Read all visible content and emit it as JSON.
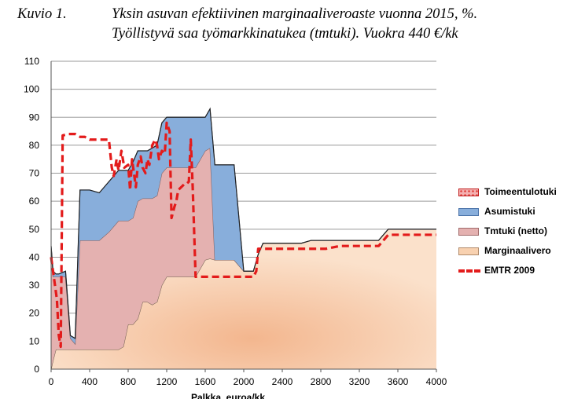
{
  "caption": {
    "number": "Kuvio 1.",
    "line1": "Yksin asuvan efektiivinen marginaaliveroaste vuonna 2015, %.",
    "line2": "Työllistyvä saa työmarkkinatukea (tmtuki). Vuokra 440 €/kk"
  },
  "colors": {
    "toimeentulotuki": "#e0403c",
    "asumistuki": "#88aedb",
    "tmtuki": "#e4b1b0",
    "marginaalivero": "#f8d1b0",
    "emtr": "#e31b1b",
    "grid": "#9a9a9a"
  },
  "chart_data": {
    "type": "area",
    "xlabel": "Palkka, euroa/kk",
    "ylabel": "",
    "xlim": [
      0,
      4000
    ],
    "ylim": [
      0,
      110
    ],
    "x_ticks": [
      0,
      400,
      800,
      1200,
      1600,
      2000,
      2400,
      2800,
      3200,
      3600,
      4000
    ],
    "y_ticks": [
      0,
      10,
      20,
      30,
      40,
      50,
      60,
      70,
      80,
      90,
      100,
      110
    ],
    "grid": true,
    "legend_position": "right",
    "series": [
      {
        "name": "Marginaalivero",
        "kind": "stacked-area",
        "x": [
          0,
          20,
          50,
          80,
          150,
          200,
          250,
          300,
          400,
          500,
          600,
          700,
          750,
          800,
          850,
          900,
          950,
          1000,
          1050,
          1100,
          1150,
          1200,
          1250,
          1300,
          1400,
          1500,
          1600,
          1650,
          1700,
          1800,
          1900,
          2000,
          2050,
          2100,
          2150,
          2200,
          2600,
          2700,
          3400,
          3500,
          4000
        ],
        "y": [
          0,
          3,
          7,
          7,
          7,
          7,
          7,
          7,
          7,
          7,
          7,
          7,
          8,
          16,
          16,
          18,
          24,
          24,
          23,
          24,
          30,
          33,
          33,
          33,
          33,
          33,
          39,
          39.5,
          39,
          39,
          39,
          35,
          35,
          35,
          41,
          45,
          45,
          46,
          46,
          50,
          50
        ]
      },
      {
        "name": "Tmtuki (netto)",
        "kind": "stacked-area",
        "x": [
          0,
          20,
          50,
          80,
          150,
          200,
          250,
          300,
          400,
          500,
          600,
          700,
          750,
          800,
          850,
          900,
          950,
          1000,
          1050,
          1100,
          1150,
          1200,
          1250,
          1300,
          1400,
          1500,
          1600,
          1650,
          1700,
          1800,
          1900,
          2000,
          2050,
          2100,
          2150,
          2200,
          2600,
          2700,
          3400,
          3500,
          4000
        ],
        "y": [
          44,
          30,
          26,
          26,
          26,
          4,
          2,
          39,
          39,
          39,
          42,
          46,
          45,
          37,
          38,
          42,
          37,
          37,
          38,
          38,
          40,
          39,
          39,
          39,
          39,
          39,
          39,
          39.5,
          0,
          0,
          0,
          0,
          0,
          0,
          0,
          0,
          0,
          0,
          0,
          0,
          0
        ]
      },
      {
        "name": "Asumistuki",
        "kind": "stacked-area",
        "x": [
          0,
          20,
          50,
          80,
          150,
          200,
          250,
          300,
          400,
          500,
          600,
          700,
          750,
          800,
          850,
          900,
          950,
          1000,
          1050,
          1100,
          1150,
          1200,
          1250,
          1300,
          1400,
          1500,
          1600,
          1650,
          1700,
          1800,
          1900,
          2000,
          2050,
          2100,
          2150,
          2200,
          2600,
          2700,
          3400,
          3500,
          4000
        ],
        "y": [
          0,
          2,
          1,
          1,
          2,
          1,
          2,
          18,
          18,
          17,
          18,
          18,
          18,
          18,
          20,
          18,
          17,
          17,
          18,
          18,
          18,
          18,
          18,
          18,
          18,
          18,
          12,
          14,
          34,
          34,
          34,
          0,
          0,
          0,
          0,
          0,
          0,
          0,
          0,
          0,
          0
        ]
      },
      {
        "name": "Toimeentulotuki",
        "kind": "stacked-area",
        "x": [
          0,
          4000
        ],
        "y": [
          0,
          0
        ]
      },
      {
        "name": "EMTR 2009",
        "kind": "dashed-line",
        "x": [
          0,
          40,
          60,
          80,
          100,
          120,
          180,
          250,
          300,
          350,
          400,
          500,
          600,
          630,
          650,
          680,
          700,
          730,
          760,
          800,
          820,
          840,
          860,
          880,
          900,
          930,
          950,
          980,
          1000,
          1020,
          1050,
          1080,
          1100,
          1120,
          1150,
          1180,
          1200,
          1230,
          1250,
          1280,
          1300,
          1320,
          1350,
          1380,
          1400,
          1430,
          1450,
          1470,
          1500,
          1550,
          1600,
          1700,
          1800,
          1900,
          2000,
          2100,
          2130,
          2150,
          2200,
          2400,
          2800,
          2850,
          3000,
          3400,
          3450,
          3500,
          4000
        ],
        "y": [
          40,
          30,
          25,
          12,
          8,
          83.5,
          84,
          84,
          83,
          83,
          82,
          82,
          82,
          72,
          69,
          75,
          71,
          78,
          72,
          73,
          64,
          75,
          70,
          65,
          73,
          76,
          72,
          70,
          75,
          73,
          80,
          82,
          80,
          75,
          78,
          77,
          88,
          85,
          54,
          58,
          60,
          64,
          65,
          66,
          66,
          67,
          82,
          65,
          33,
          33,
          33,
          33,
          33,
          33,
          33,
          33,
          35,
          43,
          43,
          43,
          43,
          43,
          44,
          44,
          46,
          48,
          48
        ]
      }
    ]
  }
}
